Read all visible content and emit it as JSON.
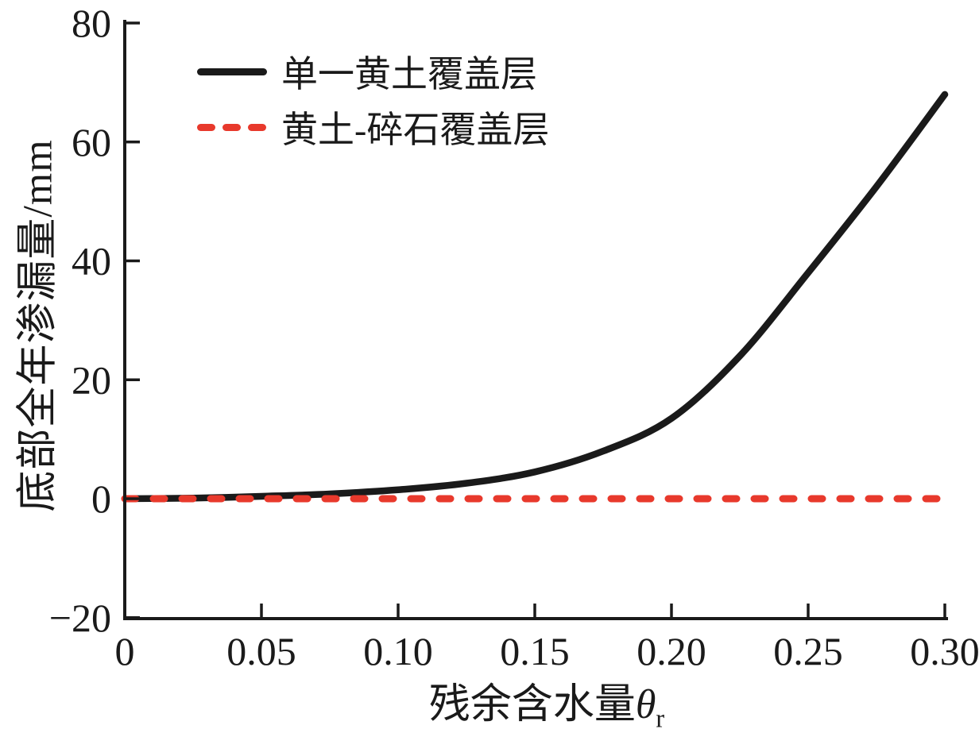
{
  "chart_data": {
    "type": "line",
    "title": "",
    "xlabel": {
      "prefix": "残余含水量",
      "symbol": "θ",
      "subscript": "r"
    },
    "ylabel": "底部全年渗漏量/mm",
    "xlim": [
      0,
      0.3
    ],
    "ylim": [
      -20,
      80
    ],
    "grid": false,
    "x_ticks": {
      "values": [
        0,
        0.05,
        0.1,
        0.15,
        0.2,
        0.25,
        0.3
      ],
      "labels": [
        "0",
        "0.05",
        "0.10",
        "0.15",
        "0.20",
        "0.25",
        "0.30"
      ]
    },
    "y_ticks": {
      "values": [
        -20,
        0,
        20,
        40,
        60,
        80
      ],
      "labels": [
        "−20",
        "0",
        "20",
        "40",
        "60",
        "80"
      ]
    },
    "legend": {
      "position": "top-left-inside",
      "entries": [
        {
          "label": "单一黄土覆盖层",
          "color": "#1a1a1a",
          "line_style": "solid"
        },
        {
          "label": "黄土-碎石覆盖层",
          "color": "#e8392c",
          "line_style": "dashed"
        }
      ]
    },
    "series": [
      {
        "name": "单一黄土覆盖层",
        "style": "solid",
        "color": "#1a1a1a",
        "x": [
          0,
          0.025,
          0.05,
          0.075,
          0.1,
          0.125,
          0.15,
          0.175,
          0.2,
          0.225,
          0.25,
          0.275,
          0.3
        ],
        "y": [
          0,
          0.1,
          0.4,
          0.8,
          1.5,
          2.6,
          4.5,
          8.0,
          13.5,
          24.0,
          38.0,
          52.5,
          68.0
        ]
      },
      {
        "name": "黄土-碎石覆盖层",
        "style": "dashed",
        "color": "#e8392c",
        "x": [
          0,
          0.3
        ],
        "y": [
          0,
          0
        ]
      }
    ]
  },
  "colors": {
    "background": "#ffffff",
    "axis": "#1a1a1a",
    "series_solid": "#1a1a1a",
    "series_dashed": "#e8392c"
  }
}
